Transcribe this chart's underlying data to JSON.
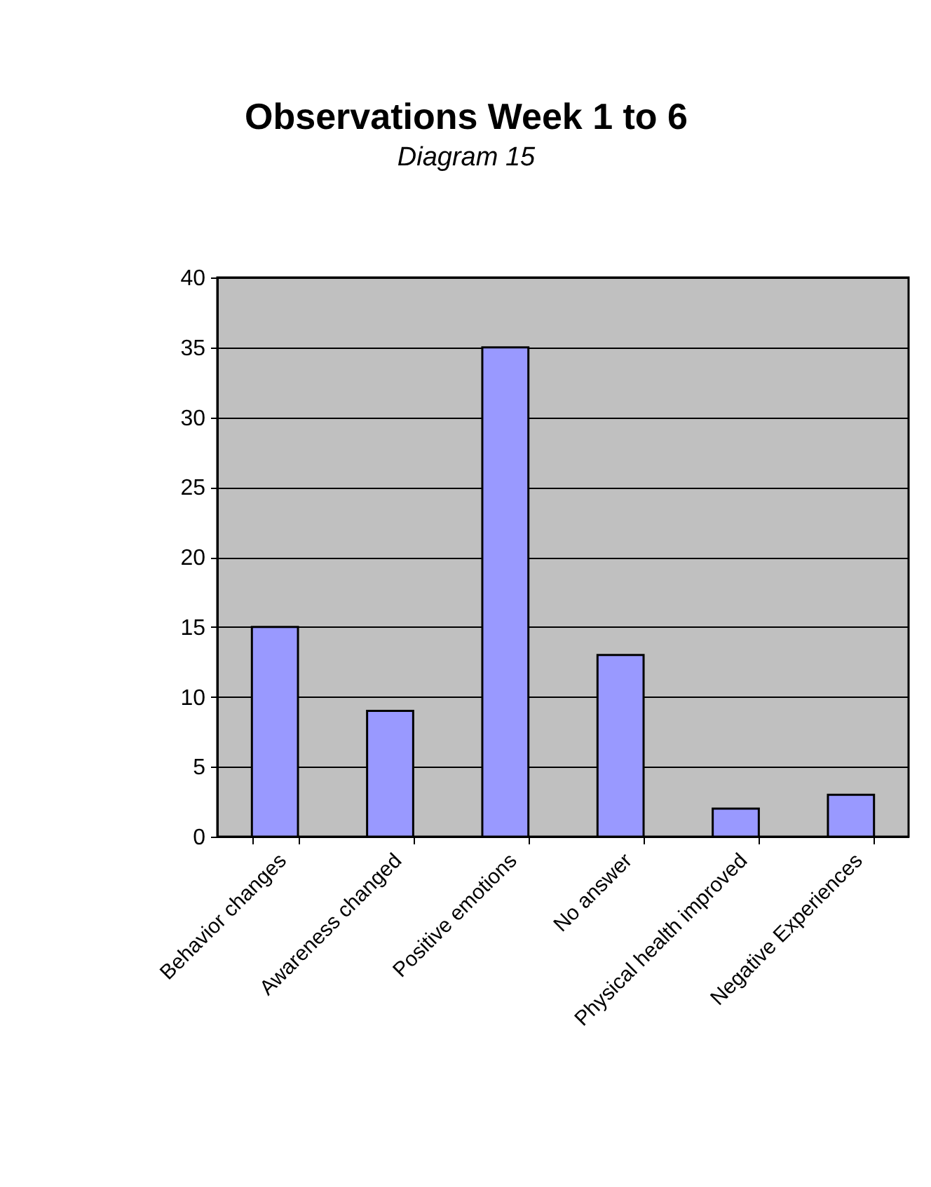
{
  "chart_data": {
    "type": "bar",
    "title": "Observations Week 1 to 6",
    "subtitle": "Diagram 15",
    "categories": [
      "Behavior changes",
      "Awareness changed",
      "Positive emotions",
      "No answer",
      "Physical health improved",
      "Negative Experiences"
    ],
    "values": [
      15,
      9,
      35,
      13,
      2,
      3
    ],
    "color": "#9999ff",
    "ylim": [
      0,
      40
    ],
    "yticks": [
      0,
      5,
      10,
      15,
      20,
      25,
      30,
      35,
      40
    ],
    "grid": "y"
  }
}
